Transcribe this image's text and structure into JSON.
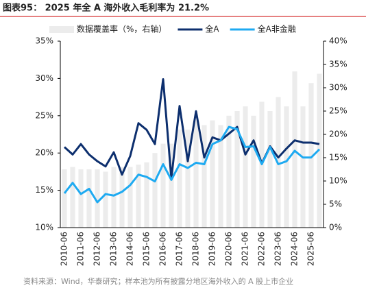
{
  "chart_data": {
    "type": "bar-line",
    "title": "图表95：  2025 年全 A 海外收入毛利率为 21.2%",
    "source": "资料来源：Wind，华泰研究；样本池为所有披露分地区海外收入的 A 股上市企业",
    "categories": [
      "2010-06",
      null,
      "2011-06",
      null,
      "2012-06",
      null,
      "2013-06",
      null,
      "2014-06",
      null,
      "2015-06",
      null,
      "2016-06",
      null,
      "2017-06",
      null,
      "2018-06",
      null,
      "2019-06",
      null,
      "2020-06",
      null,
      "2021-06",
      null,
      "2022-06",
      null,
      "2023-06",
      null,
      "2024-06",
      null,
      "2025-06",
      null
    ],
    "series": [
      {
        "name": "数据覆盖率（%，右轴）",
        "type": "bar",
        "axis": "y2",
        "color": "#ececec",
        "values": [
          12.5,
          13,
          12.5,
          12.5,
          12.5,
          12,
          13,
          13,
          13,
          13.5,
          14,
          16,
          18,
          18,
          21,
          21,
          23,
          22,
          23,
          22,
          24,
          25,
          26,
          24,
          27,
          25,
          28,
          26,
          33.5,
          26,
          31,
          33
        ]
      },
      {
        "name": "全A",
        "type": "line",
        "color": "#0d2f6e",
        "values": [
          20.8,
          19.8,
          21.2,
          19.8,
          18.9,
          18.2,
          20.1,
          17.1,
          19.6,
          24.0,
          23.1,
          21.2,
          29.9,
          16.6,
          26.3,
          18.9,
          25.6,
          19.4,
          22.1,
          21.7,
          22.6,
          23.5,
          19.8,
          21.7,
          18.6,
          20.9,
          19.4,
          20.6,
          21.7,
          21.4,
          21.4,
          21.2
        ]
      },
      {
        "name": "全A非金融",
        "type": "line",
        "color": "#1eaaf1",
        "values": [
          14.6,
          16.0,
          14.5,
          15.2,
          13.4,
          14.5,
          14.3,
          14.8,
          15.7,
          17.1,
          16.8,
          16.2,
          18.5,
          16.4,
          18.5,
          18.0,
          18.7,
          18.5,
          21.2,
          21.7,
          23.5,
          23.2,
          20.8,
          20.9,
          18.5,
          20.8,
          18.5,
          18.9,
          20.3,
          19.4,
          19.4,
          20.5
        ]
      }
    ],
    "ylim": [
      10,
      35
    ],
    "yticks": [
      {
        "value": 10,
        "label": "10%"
      },
      {
        "value": 15,
        "label": "15%"
      },
      {
        "value": 20,
        "label": "20%"
      },
      {
        "value": 25,
        "label": "25%"
      },
      {
        "value": 30,
        "label": "30%"
      },
      {
        "value": 35,
        "label": "35%"
      }
    ],
    "y2lim": [
      0,
      40
    ],
    "y2ticks": [
      {
        "value": 0,
        "label": "0%"
      },
      {
        "value": 5,
        "label": "5%"
      },
      {
        "value": 10,
        "label": "10%"
      },
      {
        "value": 15,
        "label": "15%"
      },
      {
        "value": 20,
        "label": "20%"
      },
      {
        "value": 25,
        "label": "25%"
      },
      {
        "value": 30,
        "label": "30%"
      },
      {
        "value": 35,
        "label": "35%"
      },
      {
        "value": 40,
        "label": "40%"
      }
    ]
  }
}
